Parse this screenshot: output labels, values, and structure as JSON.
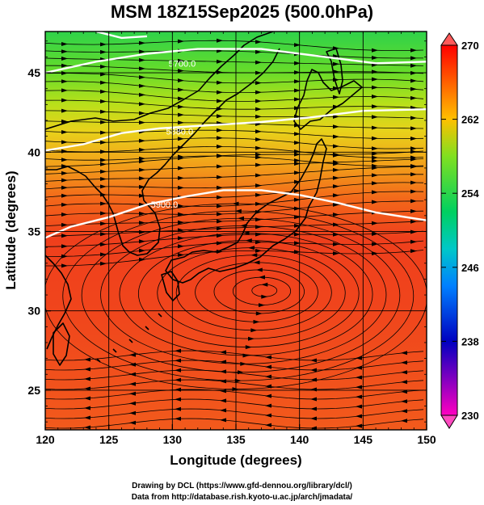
{
  "title": "MSM 18Z15Sep2025 (500.0hPa)",
  "map": {
    "xlabel": "Longitude (degrees)",
    "ylabel": "Latitude  (degrees)",
    "x_ticks": [
      "120",
      "125",
      "130",
      "135",
      "140",
      "145",
      "150"
    ],
    "y_ticks": [
      "25",
      "30",
      "35",
      "40",
      "45"
    ],
    "x_range": [
      120,
      150
    ],
    "y_range": [
      22.5,
      47.6
    ],
    "contour_labels": [
      "5700.0",
      "5880.0",
      "5900.0"
    ],
    "contour_label_positions": [
      {
        "text_index": 0,
        "lon": 129.7,
        "lat": 45.6
      },
      {
        "text_index": 1,
        "lon": 129.5,
        "lat": 41.3
      },
      {
        "text_index": 2,
        "lon": 128.3,
        "lat": 36.7
      }
    ],
    "contours": [
      {
        "label": "5700.0",
        "points": [
          [
            120,
            45.0
          ],
          [
            124,
            45.7
          ],
          [
            128,
            46.2
          ],
          [
            132,
            46.5
          ],
          [
            137,
            46.5
          ],
          [
            142,
            46.0
          ],
          [
            146,
            45.6
          ],
          [
            150,
            45.7
          ]
        ]
      },
      {
        "label": "5880.0",
        "points": [
          [
            120,
            40.1
          ],
          [
            123,
            40.5
          ],
          [
            126,
            41.2
          ],
          [
            129,
            41.5
          ],
          [
            133,
            41.7
          ],
          [
            137,
            41.9
          ],
          [
            141,
            42.2
          ],
          [
            145,
            42.6
          ],
          [
            150,
            42.7
          ]
        ]
      },
      {
        "label": "5900.0",
        "points": [
          [
            120,
            34.6
          ],
          [
            122,
            35.3
          ],
          [
            125,
            35.9
          ],
          [
            128,
            36.7
          ],
          [
            131,
            37.2
          ],
          [
            134,
            37.6
          ],
          [
            137,
            37.6
          ],
          [
            140,
            37.3
          ],
          [
            143,
            36.8
          ],
          [
            146,
            36.2
          ],
          [
            150,
            35.7
          ]
        ]
      },
      {
        "label": "top",
        "points": [
          [
            124,
            47.6
          ],
          [
            126,
            47.2
          ],
          [
            128,
            47.3
          ]
        ]
      }
    ],
    "cyclone_center": {
      "lon": 137.4,
      "lat": 31.3
    }
  },
  "colorbar": {
    "ticks": [
      "270",
      "262",
      "254",
      "246",
      "238",
      "230"
    ],
    "range": [
      230,
      270
    ]
  },
  "footer": {
    "line1": "Drawing by DCL (https://www.gfd-dennou.org/library/dcl/)",
    "line2": "Data from http://database.rish.kyoto-u.ac.jp/arch/jmadata/"
  }
}
